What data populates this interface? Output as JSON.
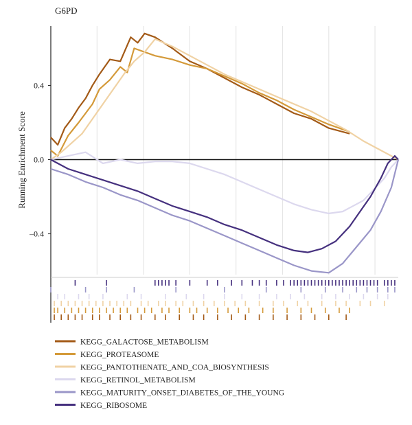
{
  "chart_data": {
    "type": "line",
    "title": "G6PD",
    "xlabel": "",
    "ylabel": "Running Enrichment Score",
    "ylim": [
      -0.62,
      0.72
    ],
    "y_ticks": [
      0.4,
      0.0,
      -0.4
    ],
    "y_tick_labels": [
      "0.4",
      "0.0",
      "–0.4"
    ],
    "x_range": [
      0,
      1
    ],
    "grid": "vertical",
    "legend_position": "bottom",
    "series": [
      {
        "name": "KEGG_GALACTOSE_METABOLISM",
        "color": "#a35a17",
        "x": [
          0.0,
          0.02,
          0.04,
          0.06,
          0.08,
          0.1,
          0.12,
          0.14,
          0.17,
          0.2,
          0.23,
          0.25,
          0.27,
          0.3,
          0.35,
          0.4,
          0.45,
          0.5,
          0.55,
          0.6,
          0.65,
          0.7,
          0.75,
          0.8,
          0.86
        ],
        "y": [
          0.12,
          0.08,
          0.17,
          0.22,
          0.28,
          0.33,
          0.4,
          0.46,
          0.54,
          0.53,
          0.66,
          0.63,
          0.68,
          0.66,
          0.6,
          0.53,
          0.49,
          0.44,
          0.39,
          0.35,
          0.3,
          0.25,
          0.22,
          0.17,
          0.14
        ]
      },
      {
        "name": "KEGG_PROTEASOME",
        "color": "#d49a3a",
        "x": [
          0.0,
          0.02,
          0.05,
          0.08,
          0.1,
          0.12,
          0.14,
          0.17,
          0.2,
          0.22,
          0.24,
          0.27,
          0.3,
          0.35,
          0.4,
          0.45,
          0.5,
          0.55,
          0.6,
          0.65,
          0.7,
          0.75,
          0.8,
          0.86
        ],
        "y": [
          0.05,
          0.02,
          0.13,
          0.2,
          0.25,
          0.3,
          0.38,
          0.43,
          0.5,
          0.47,
          0.6,
          0.58,
          0.56,
          0.54,
          0.51,
          0.49,
          0.45,
          0.41,
          0.36,
          0.32,
          0.27,
          0.23,
          0.19,
          0.15
        ]
      },
      {
        "name": "KEGG_PANTOTHENATE_AND_COA_BIOSYNTHESIS",
        "color": "#f0d2a4",
        "x": [
          0.0,
          0.03,
          0.06,
          0.09,
          0.12,
          0.15,
          0.18,
          0.21,
          0.24,
          0.27,
          0.3,
          0.35,
          0.4,
          0.45,
          0.5,
          0.55,
          0.6,
          0.65,
          0.7,
          0.75,
          0.8,
          0.85,
          0.9,
          0.95,
          1.0
        ],
        "y": [
          0.0,
          0.04,
          0.09,
          0.14,
          0.22,
          0.3,
          0.38,
          0.46,
          0.53,
          0.58,
          0.65,
          0.61,
          0.56,
          0.51,
          0.46,
          0.42,
          0.38,
          0.34,
          0.3,
          0.26,
          0.21,
          0.16,
          0.1,
          0.05,
          0.0
        ]
      },
      {
        "name": "KEGG_RETINOL_METABOLISM",
        "color": "#dcd8ee",
        "x": [
          0.0,
          0.05,
          0.1,
          0.15,
          0.2,
          0.25,
          0.3,
          0.35,
          0.4,
          0.45,
          0.5,
          0.55,
          0.6,
          0.65,
          0.7,
          0.75,
          0.8,
          0.84,
          0.88,
          0.9,
          0.93,
          0.96,
          0.98,
          1.0
        ],
        "y": [
          0.0,
          0.02,
          0.04,
          -0.02,
          0.0,
          -0.02,
          -0.01,
          -0.01,
          -0.02,
          -0.05,
          -0.08,
          -0.12,
          -0.16,
          -0.2,
          -0.24,
          -0.27,
          -0.29,
          -0.28,
          -0.24,
          -0.22,
          -0.16,
          -0.1,
          -0.04,
          0.0
        ]
      },
      {
        "name": "KEGG_MATURITY_ONSET_DIABETES_OF_THE_YOUNG",
        "color": "#9a96c8",
        "x": [
          0.0,
          0.05,
          0.1,
          0.15,
          0.2,
          0.25,
          0.3,
          0.35,
          0.4,
          0.45,
          0.5,
          0.55,
          0.6,
          0.65,
          0.7,
          0.75,
          0.8,
          0.84,
          0.88,
          0.92,
          0.95,
          0.98,
          1.0
        ],
        "y": [
          -0.05,
          -0.08,
          -0.12,
          -0.15,
          -0.19,
          -0.22,
          -0.26,
          -0.3,
          -0.33,
          -0.37,
          -0.41,
          -0.45,
          -0.49,
          -0.53,
          -0.57,
          -0.6,
          -0.61,
          -0.56,
          -0.47,
          -0.38,
          -0.28,
          -0.15,
          0.0
        ]
      },
      {
        "name": "KEGG_RIBOSOME",
        "color": "#45307e",
        "x": [
          0.0,
          0.05,
          0.1,
          0.15,
          0.2,
          0.25,
          0.3,
          0.35,
          0.4,
          0.45,
          0.5,
          0.55,
          0.6,
          0.65,
          0.7,
          0.74,
          0.78,
          0.82,
          0.86,
          0.89,
          0.92,
          0.95,
          0.97,
          0.99,
          1.0
        ],
        "y": [
          0.0,
          -0.05,
          -0.08,
          -0.11,
          -0.14,
          -0.17,
          -0.21,
          -0.25,
          -0.28,
          -0.31,
          -0.35,
          -0.38,
          -0.42,
          -0.46,
          -0.49,
          -0.5,
          -0.48,
          -0.44,
          -0.36,
          -0.28,
          -0.2,
          -0.1,
          -0.02,
          0.02,
          0.0
        ]
      }
    ],
    "rug": [
      {
        "series": "KEGG_RIBOSOME",
        "color": "#45307e",
        "positions": [
          0.07,
          0.16,
          0.3,
          0.31,
          0.32,
          0.33,
          0.34,
          0.36,
          0.4,
          0.45,
          0.48,
          0.52,
          0.55,
          0.58,
          0.6,
          0.62,
          0.65,
          0.67,
          0.69,
          0.7,
          0.71,
          0.72,
          0.73,
          0.74,
          0.75,
          0.76,
          0.77,
          0.78,
          0.79,
          0.8,
          0.81,
          0.82,
          0.83,
          0.84,
          0.85,
          0.86,
          0.87,
          0.88,
          0.89,
          0.9,
          0.91,
          0.92,
          0.93,
          0.94,
          0.96,
          0.97,
          0.98,
          0.99
        ]
      },
      {
        "series": "KEGG_MATURITY_ONSET_DIABETES_OF_THE_YOUNG",
        "color": "#9a96c8",
        "positions": [
          0.0,
          0.1,
          0.16,
          0.24,
          0.36,
          0.5,
          0.62,
          0.72,
          0.79,
          0.84,
          0.88,
          0.91,
          0.94,
          0.97,
          0.99
        ]
      },
      {
        "series": "KEGG_RETINOL_METABOLISM",
        "color": "#dcd8ee",
        "positions": [
          0.02,
          0.04,
          0.08,
          0.11,
          0.15,
          0.22,
          0.26,
          0.33,
          0.39,
          0.44,
          0.5,
          0.55,
          0.6,
          0.65,
          0.69,
          0.73,
          0.78,
          0.82,
          0.86,
          0.9,
          0.94,
          0.97
        ]
      },
      {
        "series": "KEGG_PANTOTHENATE_AND_COA_BIOSYNTHESIS",
        "color": "#f0d2a4",
        "positions": [
          0.01,
          0.03,
          0.05,
          0.07,
          0.09,
          0.11,
          0.13,
          0.15,
          0.17,
          0.19,
          0.21,
          0.23,
          0.26,
          0.28,
          0.31,
          0.33,
          0.36,
          0.38,
          0.41,
          0.44,
          0.47,
          0.5,
          0.53,
          0.56,
          0.6,
          0.64,
          0.67,
          0.71,
          0.74,
          0.78,
          0.82,
          0.85,
          0.89,
          0.92,
          0.96
        ]
      },
      {
        "series": "KEGG_PROTEASOME",
        "color": "#d49a3a",
        "positions": [
          0.01,
          0.02,
          0.04,
          0.06,
          0.08,
          0.1,
          0.12,
          0.14,
          0.16,
          0.18,
          0.2,
          0.22,
          0.25,
          0.27,
          0.29,
          0.32,
          0.34,
          0.37,
          0.4,
          0.42,
          0.45,
          0.48,
          0.51,
          0.54,
          0.57,
          0.61,
          0.64,
          0.68,
          0.72,
          0.75,
          0.79,
          0.83,
          0.86
        ]
      },
      {
        "series": "KEGG_GALACTOSE_METABOLISM",
        "color": "#a35a17",
        "positions": [
          0.01,
          0.03,
          0.05,
          0.07,
          0.09,
          0.12,
          0.14,
          0.17,
          0.2,
          0.23,
          0.26,
          0.3,
          0.33,
          0.37,
          0.41,
          0.44,
          0.48,
          0.52,
          0.56,
          0.6,
          0.64,
          0.68,
          0.72,
          0.76,
          0.8,
          0.85
        ]
      }
    ]
  }
}
